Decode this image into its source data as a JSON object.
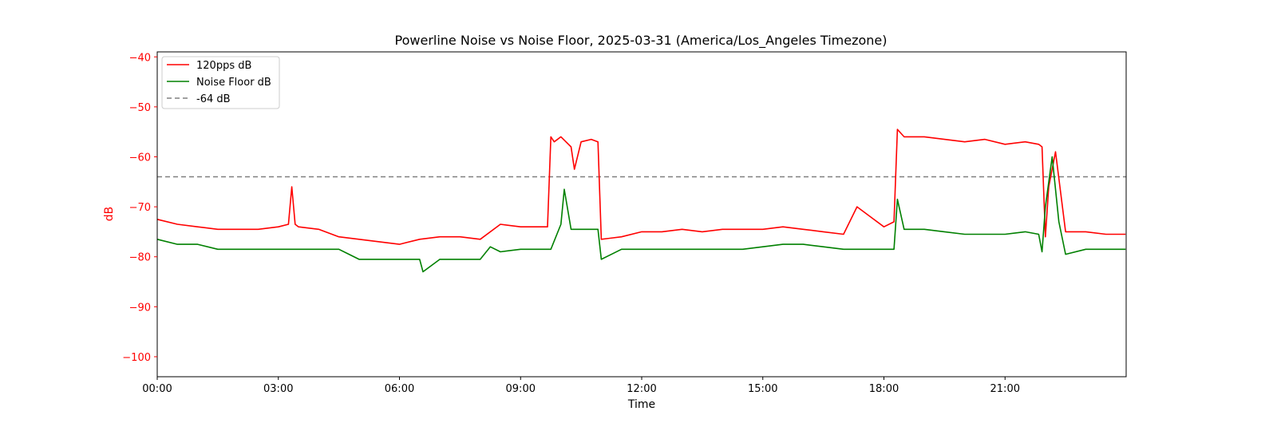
{
  "chart_data": {
    "type": "line",
    "title": "Powerline Noise vs Noise Floor, 2025-03-31 (America/Los_Angeles Timezone)",
    "xlabel": "Time",
    "ylabel": "dB",
    "xlim": [
      "00:00",
      "24:00"
    ],
    "ylim": [
      -104,
      -39
    ],
    "x_ticks": [
      "00:00",
      "03:00",
      "06:00",
      "09:00",
      "12:00",
      "15:00",
      "18:00",
      "21:00"
    ],
    "y_ticks": [
      -40,
      -50,
      -60,
      -70,
      -80,
      -90,
      -100
    ],
    "grid": false,
    "legend_position": "top-left",
    "colors": {
      "pps": "#ff0000",
      "floor": "#008000",
      "threshold": "#808080",
      "ylabel": "#ff0000"
    },
    "threshold": {
      "name": "-64 dB",
      "value": -64,
      "style": "dashed"
    },
    "series": [
      {
        "name": "120pps dB",
        "color": "#ff0000",
        "x": [
          "00:00",
          "00:30",
          "01:00",
          "01:30",
          "02:00",
          "02:30",
          "03:00",
          "03:15",
          "03:20",
          "03:25",
          "03:30",
          "04:00",
          "04:30",
          "05:00",
          "05:30",
          "06:00",
          "06:30",
          "07:00",
          "07:30",
          "08:00",
          "08:30",
          "09:00",
          "09:30",
          "09:40",
          "09:45",
          "09:50",
          "10:00",
          "10:15",
          "10:20",
          "10:30",
          "10:45",
          "10:55",
          "11:00",
          "11:30",
          "12:00",
          "12:30",
          "13:00",
          "13:30",
          "14:00",
          "14:30",
          "15:00",
          "15:30",
          "16:00",
          "16:30",
          "17:00",
          "17:20",
          "17:40",
          "18:00",
          "18:15",
          "18:20",
          "18:30",
          "19:00",
          "19:30",
          "20:00",
          "20:30",
          "21:00",
          "21:30",
          "21:50",
          "21:55",
          "22:00",
          "22:05",
          "22:15",
          "22:30",
          "23:00",
          "23:30",
          "23:59"
        ],
        "y": [
          -72.5,
          -73.5,
          -74,
          -74.5,
          -74.5,
          -74.5,
          -74,
          -73.5,
          -66,
          -73.5,
          -74,
          -74.5,
          -76,
          -76.5,
          -77,
          -77.5,
          -76.5,
          -76,
          -76,
          -76.5,
          -73.5,
          -74,
          -74,
          -74,
          -56,
          -57,
          -56,
          -58,
          -62.5,
          -57,
          -56.5,
          -57,
          -76.5,
          -76,
          -75,
          -75,
          -74.5,
          -75,
          -74.5,
          -74.5,
          -74.5,
          -74,
          -74.5,
          -75,
          -75.5,
          -70,
          -72,
          -74,
          -73,
          -54.5,
          -56,
          -56,
          -56.5,
          -57,
          -56.5,
          -57.5,
          -57,
          -57.5,
          -58,
          -76,
          -66,
          -59,
          -75,
          -75,
          -75.5,
          -75.5
        ]
      },
      {
        "name": "Noise Floor dB",
        "color": "#008000",
        "x": [
          "00:00",
          "00:30",
          "01:00",
          "01:30",
          "02:00",
          "02:30",
          "03:00",
          "03:30",
          "04:00",
          "04:30",
          "04:45",
          "05:00",
          "05:30",
          "06:00",
          "06:30",
          "06:35",
          "07:00",
          "07:30",
          "08:00",
          "08:15",
          "08:30",
          "09:00",
          "09:30",
          "09:45",
          "10:00",
          "10:05",
          "10:15",
          "10:30",
          "10:45",
          "10:55",
          "11:00",
          "11:30",
          "12:00",
          "12:30",
          "13:00",
          "13:30",
          "14:00",
          "14:30",
          "15:00",
          "15:30",
          "16:00",
          "16:30",
          "17:00",
          "17:30",
          "18:00",
          "18:15",
          "18:20",
          "18:30",
          "19:00",
          "19:30",
          "20:00",
          "20:30",
          "21:00",
          "21:30",
          "21:50",
          "21:55",
          "22:00",
          "22:10",
          "22:20",
          "22:30",
          "23:00",
          "23:30",
          "23:59"
        ],
        "y": [
          -76.5,
          -77.5,
          -77.5,
          -78.5,
          -78.5,
          -78.5,
          -78.5,
          -78.5,
          -78.5,
          -78.5,
          -79.5,
          -80.5,
          -80.5,
          -80.5,
          -80.5,
          -83,
          -80.5,
          -80.5,
          -80.5,
          -78,
          -79,
          -78.5,
          -78.5,
          -78.5,
          -73.5,
          -66.5,
          -74.5,
          -74.5,
          -74.5,
          -74.5,
          -80.5,
          -78.5,
          -78.5,
          -78.5,
          -78.5,
          -78.5,
          -78.5,
          -78.5,
          -78,
          -77.5,
          -77.5,
          -78,
          -78.5,
          -78.5,
          -78.5,
          -78.5,
          -68.5,
          -74.5,
          -74.5,
          -75,
          -75.5,
          -75.5,
          -75.5,
          -75,
          -75.5,
          -79,
          -70,
          -60,
          -73,
          -79.5,
          -78.5,
          -78.5,
          -78.5
        ]
      }
    ]
  }
}
